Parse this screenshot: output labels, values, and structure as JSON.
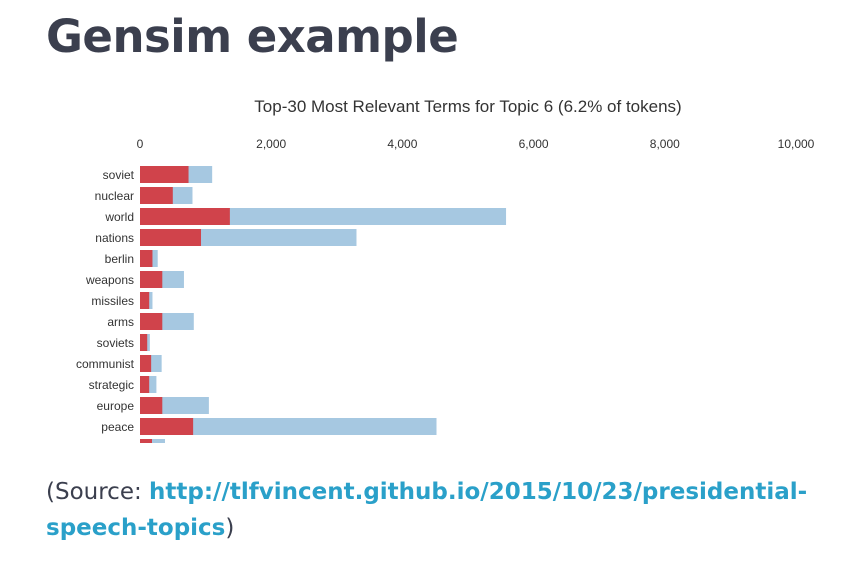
{
  "heading": "Gensim example",
  "caption": {
    "prefix": "(Source: ",
    "link_text": "http://tlfvincent.github.io/2015/10/23/presidential-speech-topics",
    "suffix": ")"
  },
  "colors": {
    "topic_bar": "#d0434b",
    "overall_bar": "#a6c8e1",
    "text": "#333333",
    "link": "#2aa0c9",
    "heading": "#3b3f4e"
  },
  "chart_data": {
    "type": "bar",
    "orientation": "horizontal",
    "stacked": "overlay",
    "title": "Top-30 Most Relevant Terms for Topic 6 (6.2% of tokens)",
    "xlim": [
      0,
      10000
    ],
    "x_ticks": [
      "0",
      "2,000",
      "4,000",
      "6,000",
      "8,000",
      "10,000"
    ],
    "x_tick_values": [
      0,
      2000,
      4000,
      6000,
      8000,
      10000
    ],
    "grid": false,
    "categories": [
      "soviet",
      "nuclear",
      "world",
      "nations",
      "berlin",
      "weapons",
      "missiles",
      "arms",
      "soviets",
      "communist",
      "strategic",
      "europe",
      "peace"
    ],
    "series": [
      {
        "values": [
          1100,
          800,
          5580,
          3300,
          270,
          670,
          190,
          820,
          150,
          330,
          250,
          1050,
          4520
        ]
      },
      {
        "values": [
          740,
          500,
          1370,
          930,
          190,
          340,
          140,
          340,
          110,
          170,
          140,
          340,
          810
        ]
      }
    ]
  }
}
